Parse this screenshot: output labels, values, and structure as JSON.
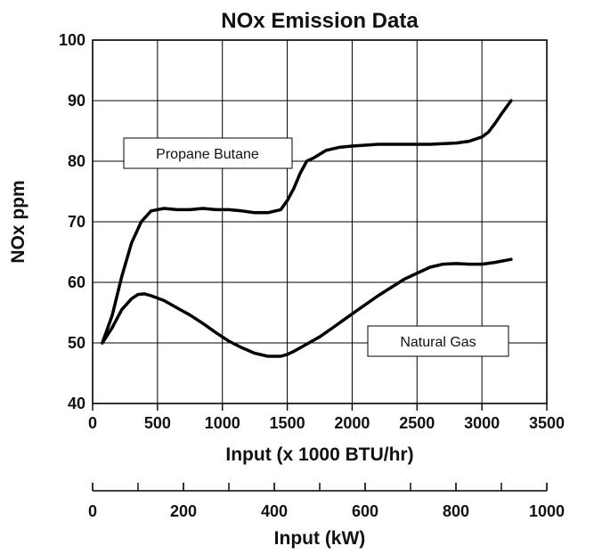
{
  "chart_data": {
    "type": "line",
    "title": "NOx Emission Data",
    "xlabel": "Input (x 1000 BTU/hr)",
    "ylabel": "NOx ppm",
    "xlim": [
      0,
      3500
    ],
    "ylim": [
      40,
      100
    ],
    "x_ticks": [
      "0",
      "500",
      "1000",
      "1500",
      "2000",
      "2500",
      "3000",
      "3500"
    ],
    "y_ticks": [
      "40",
      "50",
      "60",
      "70",
      "80",
      "90",
      "100"
    ],
    "grid": true,
    "secondary_axis": {
      "label": "Input (kW)",
      "range": [
        0,
        1000
      ],
      "tick_labels": [
        "0",
        "200",
        "400",
        "600",
        "800",
        "1000"
      ],
      "minor_ticks": [
        100,
        300,
        500,
        700,
        900
      ]
    },
    "series": [
      {
        "name": "Propane Butane",
        "x": [
          75,
          150,
          225,
          300,
          375,
          450,
          550,
          650,
          750,
          850,
          950,
          1050,
          1150,
          1250,
          1350,
          1450,
          1500,
          1550,
          1600,
          1650,
          1700,
          1800,
          1900,
          2000,
          2200,
          2400,
          2600,
          2800,
          2900,
          3000,
          3050,
          3100,
          3150,
          3225
        ],
        "y": [
          50,
          54.5,
          61,
          66.5,
          70,
          71.8,
          72.2,
          72,
          72,
          72.2,
          72,
          72,
          71.8,
          71.5,
          71.5,
          72,
          73.5,
          75.5,
          78,
          80,
          80.5,
          81.8,
          82.3,
          82.5,
          82.8,
          82.8,
          82.8,
          83,
          83.3,
          84,
          84.8,
          86.2,
          87.8,
          90
        ]
      },
      {
        "name": "Natural Gas",
        "x": [
          75,
          150,
          225,
          300,
          350,
          400,
          450,
          550,
          650,
          750,
          850,
          950,
          1050,
          1150,
          1250,
          1350,
          1450,
          1500,
          1550,
          1650,
          1750,
          1850,
          2000,
          2200,
          2400,
          2600,
          2700,
          2800,
          2900,
          3000,
          3100,
          3225
        ],
        "y": [
          50,
          52.5,
          55.5,
          57.3,
          58,
          58.1,
          57.8,
          57,
          55.8,
          54.6,
          53.2,
          51.7,
          50.3,
          49.2,
          48.3,
          47.8,
          47.8,
          48.1,
          48.6,
          49.8,
          51,
          52.5,
          54.8,
          57.8,
          60.5,
          62.5,
          63,
          63.1,
          63,
          63,
          63.3,
          63.8
        ]
      }
    ]
  }
}
